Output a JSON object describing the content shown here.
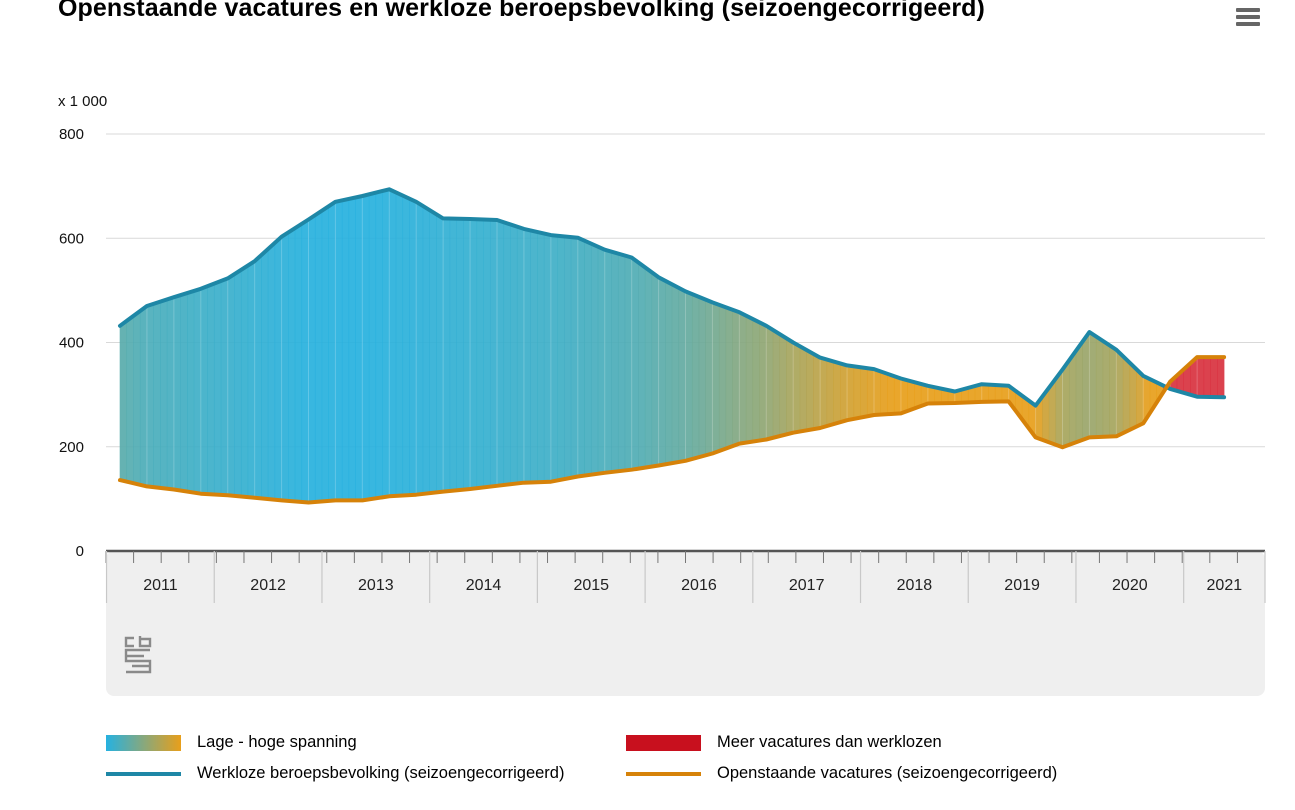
{
  "title": "Openstaande vacatures en werkloze beroepsbevolking (seizoengecorrigeerd)",
  "menu_icon": "hamburger-menu-icon",
  "logo_icon": "cbs-logo-icon",
  "chart_data": {
    "type": "area",
    "yunit": "x 1 000",
    "ylim": [
      0,
      800
    ],
    "yticks": [
      "0",
      "200",
      "400",
      "600",
      "800"
    ],
    "grid": true,
    "legend_position": "bottom",
    "xlim": [
      2011.0,
      2021.5
    ],
    "year_labels": [
      "2011",
      "2012",
      "2013",
      "2014",
      "2015",
      "2016",
      "2017",
      "2018",
      "2019",
      "2020",
      "2021"
    ],
    "x": [
      2011.0,
      2011.25,
      2011.5,
      2011.75,
      2012.0,
      2012.25,
      2012.5,
      2012.75,
      2013.0,
      2013.25,
      2013.5,
      2013.75,
      2014.0,
      2014.25,
      2014.5,
      2014.75,
      2015.0,
      2015.25,
      2015.5,
      2015.75,
      2016.0,
      2016.25,
      2016.5,
      2016.75,
      2017.0,
      2017.25,
      2017.5,
      2017.75,
      2018.0,
      2018.25,
      2018.5,
      2018.75,
      2019.0,
      2019.25,
      2019.5,
      2019.75,
      2020.0,
      2020.25,
      2020.5,
      2020.75,
      2021.0,
      2021.25
    ],
    "series": [
      {
        "name": "Werkloze beroepsbevolking (seizoengecorrigeerd)",
        "color": "#1e87a6",
        "values": [
          432,
          470,
          487,
          503,
          523,
          556,
          603,
          636,
          670,
          681,
          694,
          670,
          638,
          637,
          635,
          618,
          606,
          601,
          578,
          563,
          525,
          498,
          477,
          458,
          432,
          400,
          371,
          356,
          349,
          331,
          317,
          306,
          320,
          317,
          279,
          348,
          420,
          386,
          336,
          311,
          296,
          295
        ]
      },
      {
        "name": "Openstaande vacatures (seizoengecorrigeerd)",
        "color": "#d68209",
        "values": [
          136,
          124,
          118,
          110,
          107,
          102,
          97,
          93,
          97,
          97,
          105,
          108,
          114,
          119,
          125,
          131,
          133,
          143,
          150,
          156,
          164,
          173,
          187,
          206,
          214,
          227,
          236,
          251,
          261,
          264,
          283,
          284,
          286,
          287,
          218,
          199,
          218,
          220,
          245,
          325,
          372,
          372
        ]
      }
    ],
    "legend": [
      {
        "label": "Lage - hoge spanning",
        "kind": "gradient",
        "colors": [
          "#26b1e0",
          "#e89f1b"
        ]
      },
      {
        "label": "Meer vacatures dan werklozen",
        "kind": "fill",
        "color": "#c8101e"
      },
      {
        "label": "Werkloze beroepsbevolking (seizoengecorrigeerd)",
        "kind": "line",
        "color": "#1e87a6"
      },
      {
        "label": "Openstaande vacatures (seizoengecorrigeerd)",
        "kind": "line",
        "color": "#d68209"
      }
    ]
  }
}
